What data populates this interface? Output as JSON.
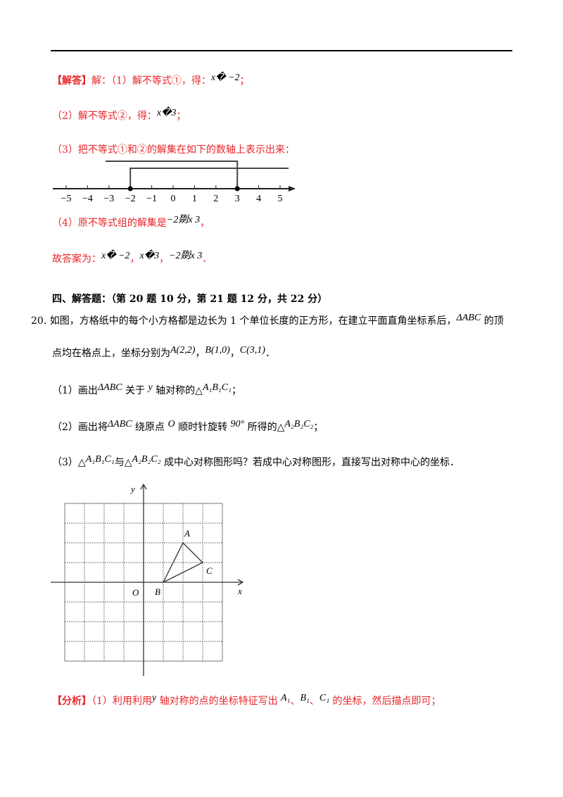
{
  "solution": {
    "tag": "【解答】",
    "line1_text": "解：（1）解不等式①，得：",
    "line1_math": "x� −2",
    "line1_end": "；",
    "line2_text": "（2）解不等式②，得：",
    "line2_math": "x�3",
    "line2_end": "；",
    "line3_text": "（3）把不等式①和②的解集在如下的数轴上表示出来：",
    "line4_text": "（4）原不等式组的解集是",
    "line4_math": "−2剟x  3",
    "line4_end": "，",
    "answer_text": "故答案为：",
    "answer_math": [
      "x� −2",
      "x�3",
      "−2剟x  3"
    ],
    "answer_seps": [
      "，",
      "，",
      "．"
    ]
  },
  "number_line": {
    "ticks": [
      "−5",
      "−4",
      "−3",
      "−2",
      "−1",
      "0",
      "1",
      "2",
      "3",
      "4",
      "5"
    ],
    "solution_1": {
      "from": -2,
      "direction": "right",
      "closed": true
    },
    "solution_2": {
      "to": 3,
      "direction": "left",
      "closed": true
    }
  },
  "section": {
    "heading": "四、解答题：（第 20 题 10 分，第 21 题 12 分，共 22 分）"
  },
  "question": {
    "number": "20.",
    "line1": "如图，方格纸中的每个小方格都是边长为 1 个单位长度的正方形，在建立平面直角坐标系后，",
    "line1_math": "ΔABC",
    "line1_end": " 的顶",
    "line2": "点均在格点上，坐标分别为",
    "coords": [
      "A(2,2)",
      "B(1,0)",
      "C(3,1)"
    ],
    "coord_seps": [
      "，",
      "，",
      "．"
    ],
    "part1": [
      "（1）画出",
      "ΔABC",
      " 关于 ",
      "y",
      " 轴对称的△",
      "A₁B₁C₁",
      "；"
    ],
    "part2": [
      "（2）画出将",
      "ΔABC",
      " 绕原点 ",
      "O",
      " 顺时针旋转 ",
      "90°",
      " 所得的△",
      "A₂B₂C₂",
      "；"
    ],
    "part3": [
      "（3）△",
      "A₁B₁C₁",
      "与△",
      "A₂B₂C₂",
      " 成中心对称图形吗？若成中心对称图形，直接写出对称中心的坐标．"
    ]
  },
  "figure": {
    "grid_range": [
      -4,
      4
    ],
    "points": {
      "A": [
        2,
        2
      ],
      "B": [
        1,
        0
      ],
      "C": [
        3,
        1
      ]
    },
    "labels": {
      "x": "x",
      "y": "y",
      "origin": "O",
      "A": "A",
      "B": "B",
      "C": "C"
    }
  },
  "analysis": {
    "tag": "【分析】",
    "parts": [
      "（1）利用利用",
      "y",
      " 轴对称的点的坐标特征写出 ",
      "A₁",
      "、",
      "B₁",
      "、",
      "C₁",
      " 的坐标，然后描点即可；"
    ]
  }
}
